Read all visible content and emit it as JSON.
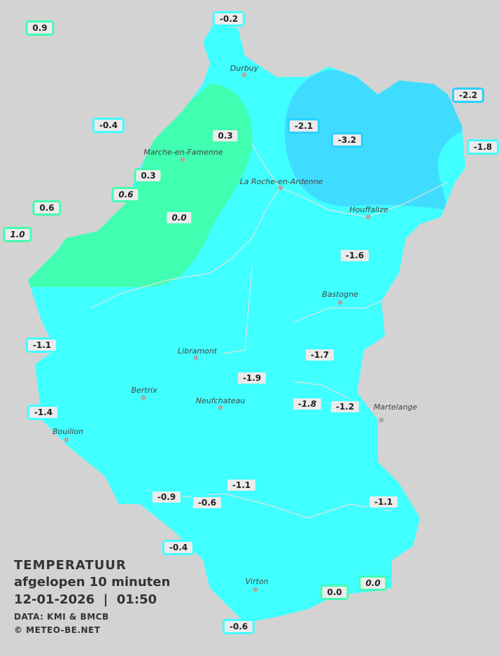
{
  "legend": {
    "title": "TEMPERATUUR",
    "subtitle": "afgelopen 10 minuten",
    "datetime": "12-01-2026  |  01:50",
    "source": "DATA: KMI & BMCB",
    "copyright": "© METEO-BE.NET"
  },
  "colors": {
    "background": "#d3d3d3",
    "band_0_to_1": "#40ffb0",
    "band_-2_to_0": "#40ffff",
    "band_-4_to_-2": "#40dcff",
    "label_bg": "#ebebeb"
  },
  "towns": [
    "Durbuy",
    "Marche-en-Famenne",
    "La Roche-en-Ardenne",
    "Houffalize",
    "Bastogne",
    "Libramont",
    "Bertrix",
    "Neufchateau",
    "Bouillon",
    "Virton",
    "Martelange"
  ],
  "stations": [
    {
      "value": "0.9",
      "band": "green",
      "italic": false
    },
    {
      "value": "-0.2",
      "band": "cyan",
      "italic": false
    },
    {
      "value": "-2.2",
      "band": "blue",
      "italic": false
    },
    {
      "value": "-0.4",
      "band": "cyan",
      "italic": false
    },
    {
      "value": "0.3",
      "band": "green",
      "italic": false
    },
    {
      "value": "-2.1",
      "band": "blue",
      "italic": false
    },
    {
      "value": "-3.2",
      "band": "blue",
      "italic": false
    },
    {
      "value": "-1.8",
      "band": "cyan",
      "italic": false
    },
    {
      "value": "0.3",
      "band": "green",
      "italic": false
    },
    {
      "value": "0.6",
      "band": "green",
      "italic": true
    },
    {
      "value": "0.6",
      "band": "green",
      "italic": false
    },
    {
      "value": "0.0",
      "band": "green",
      "italic": true
    },
    {
      "value": "1.0",
      "band": "green",
      "italic": true
    },
    {
      "value": "-1.6",
      "band": "cyan",
      "italic": false
    },
    {
      "value": "-1.1",
      "band": "cyan",
      "italic": false
    },
    {
      "value": "-1.7",
      "band": "cyan",
      "italic": false
    },
    {
      "value": "-1.9",
      "band": "cyan",
      "italic": false
    },
    {
      "value": "-1.8",
      "band": "cyan",
      "italic": true
    },
    {
      "value": "-1.2",
      "band": "cyan",
      "italic": false
    },
    {
      "value": "-1.4",
      "band": "cyan",
      "italic": false
    },
    {
      "value": "-1.1",
      "band": "cyan",
      "italic": false
    },
    {
      "value": "-0.9",
      "band": "cyan",
      "italic": false
    },
    {
      "value": "-0.6",
      "band": "cyan",
      "italic": false
    },
    {
      "value": "-1.1",
      "band": "cyan",
      "italic": false
    },
    {
      "value": "-0.4",
      "band": "cyan",
      "italic": false
    },
    {
      "value": "0.0",
      "band": "green",
      "italic": false
    },
    {
      "value": "0.0",
      "band": "green",
      "italic": true
    },
    {
      "value": "-0.6",
      "band": "cyan",
      "italic": false
    }
  ]
}
